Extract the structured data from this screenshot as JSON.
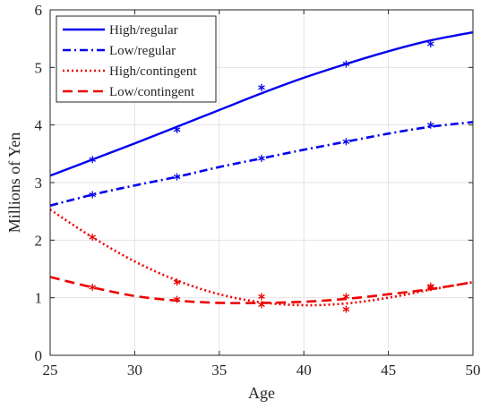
{
  "chart_data": {
    "type": "line",
    "title": "",
    "xlabel": "Age",
    "ylabel": "Millions of Yen",
    "xlim": [
      25,
      50
    ],
    "ylim": [
      0,
      6
    ],
    "xticks": [
      "25",
      "30",
      "35",
      "40",
      "45",
      "50"
    ],
    "yticks": [
      "0",
      "1",
      "2",
      "3",
      "4",
      "5",
      "6"
    ],
    "grid": true,
    "legend_position": "top-left",
    "series": [
      {
        "name": "High/regular",
        "color": "#0000ee",
        "line_style": "solid",
        "marker": "asterisk",
        "points": {
          "x": [
            27.5,
            32.5,
            37.5,
            42.5,
            47.5
          ],
          "y": [
            3.4,
            3.92,
            4.65,
            5.06,
            5.41
          ]
        },
        "fit": {
          "x": [
            25,
            27.5,
            30,
            32.5,
            35,
            37.5,
            40,
            42.5,
            45,
            47.5,
            50
          ],
          "y": [
            3.12,
            3.4,
            3.68,
            3.97,
            4.26,
            4.55,
            4.82,
            5.06,
            5.28,
            5.47,
            5.61
          ]
        }
      },
      {
        "name": "Low/regular",
        "color": "#0000ee",
        "line_style": "dash-dot",
        "marker": "asterisk",
        "points": {
          "x": [
            27.5,
            32.5,
            37.5,
            42.5,
            47.5
          ],
          "y": [
            2.79,
            3.1,
            3.42,
            3.71,
            4.0
          ]
        },
        "fit": {
          "x": [
            25,
            27.5,
            30,
            32.5,
            35,
            37.5,
            40,
            42.5,
            45,
            47.5,
            50
          ],
          "y": [
            2.6,
            2.79,
            2.95,
            3.1,
            3.27,
            3.42,
            3.57,
            3.71,
            3.85,
            3.97,
            4.05
          ]
        }
      },
      {
        "name": "High/contingent",
        "color": "#ee0000",
        "line_style": "dotted",
        "marker": "asterisk",
        "points": {
          "x": [
            27.5,
            32.5,
            37.5,
            42.5,
            47.5
          ],
          "y": [
            2.05,
            1.27,
            0.88,
            0.8,
            1.2
          ]
        },
        "fit": {
          "x": [
            25,
            27.5,
            30,
            32.5,
            35,
            37.5,
            40,
            42.5,
            45,
            47.5,
            50
          ],
          "y": [
            2.53,
            2.05,
            1.63,
            1.3,
            1.06,
            0.92,
            0.87,
            0.9,
            1.0,
            1.14,
            1.27
          ]
        }
      },
      {
        "name": "Low/contingent",
        "color": "#ee0000",
        "line_style": "dashed",
        "marker": "asterisk",
        "points": {
          "x": [
            27.5,
            32.5,
            37.5,
            42.5,
            47.5
          ],
          "y": [
            1.18,
            0.97,
            1.02,
            1.02,
            1.18
          ]
        },
        "fit": {
          "x": [
            25,
            27.5,
            30,
            32.5,
            35,
            37.5,
            40,
            42.5,
            45,
            47.5,
            50
          ],
          "y": [
            1.36,
            1.18,
            1.03,
            0.95,
            0.91,
            0.91,
            0.93,
            0.98,
            1.06,
            1.15,
            1.27
          ]
        }
      }
    ]
  }
}
